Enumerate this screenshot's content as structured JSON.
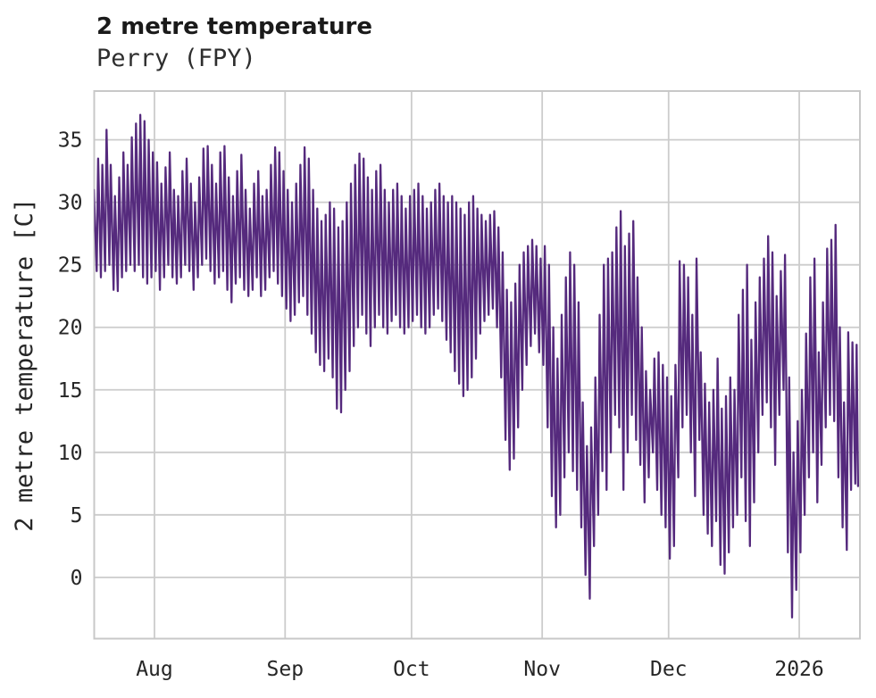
{
  "header": {
    "title": "2 metre temperature",
    "subtitle": "Perry (FPY)"
  },
  "colors": {
    "line": "#552a7d",
    "grid": "#cccccc",
    "frame": "#c8c8c8",
    "text": "#262626"
  },
  "chart_data": {
    "type": "line",
    "title": "2 metre temperature",
    "subtitle": "Perry (FPY)",
    "xlabel": "",
    "ylabel": "2 metre temperature [C]",
    "legend": "none",
    "grid": true,
    "line_color": "#552a7d",
    "start_date": "2025-07-17",
    "xlim": [
      0.7,
      182.4
    ],
    "ylim": [
      -4.9,
      38.9
    ],
    "y_ticks": [
      0,
      5,
      10,
      15,
      20,
      25,
      30,
      35
    ],
    "x_ticks": [
      {
        "label": "Aug",
        "t": 15
      },
      {
        "label": "Sep",
        "t": 46
      },
      {
        "label": "Oct",
        "t": 76
      },
      {
        "label": "Nov",
        "t": 107
      },
      {
        "label": "Dec",
        "t": 137
      },
      {
        "label": "2026",
        "t": 168
      }
    ],
    "min_sample_hour": 7,
    "max_sample_hour": 15,
    "end_value": 7.3,
    "daily_min": [
      24.0,
      24.5,
      24.0,
      24.5,
      25.0,
      23.0,
      22.9,
      24.0,
      24.5,
      25.0,
      24.5,
      25.0,
      24.0,
      23.5,
      24.0,
      24.5,
      23.0,
      24.0,
      25.0,
      24.0,
      23.5,
      24.0,
      25.0,
      24.5,
      23.0,
      24.0,
      25.0,
      25.5,
      24.5,
      23.5,
      24.0,
      24.5,
      23.0,
      22.0,
      23.5,
      24.0,
      23.0,
      22.5,
      23.0,
      24.0,
      22.5,
      23.0,
      24.0,
      24.5,
      23.5,
      22.5,
      21.5,
      20.5,
      21.0,
      22.0,
      22.5,
      21.0,
      19.5,
      18.0,
      17.0,
      16.5,
      17.5,
      16.0,
      13.5,
      13.2,
      15.0,
      16.5,
      18.5,
      20.0,
      21.0,
      19.5,
      18.5,
      20.0,
      21.0,
      20.0,
      19.5,
      20.5,
      21.0,
      20.0,
      19.5,
      20.0,
      20.5,
      21.0,
      20.0,
      19.5,
      20.0,
      21.0,
      21.5,
      20.5,
      19.0,
      18.0,
      16.5,
      15.5,
      14.5,
      15.0,
      16.0,
      17.5,
      19.5,
      20.5,
      21.0,
      21.5,
      20.0,
      16.0,
      11.0,
      8.6,
      9.5,
      12.0,
      15.0,
      17.0,
      18.5,
      19.5,
      18.0,
      17.0,
      12.0,
      6.5,
      4.0,
      5.0,
      8.0,
      10.0,
      8.5,
      7.0,
      4.0,
      0.2,
      -1.7,
      2.5,
      5.0,
      8.5,
      7.0,
      10.0,
      13.0,
      12.0,
      7.0,
      10.0,
      13.0,
      11.0,
      9.0,
      6.0,
      8.0,
      10.0,
      7.0,
      5.0,
      4.0,
      1.5,
      2.5,
      8.0,
      12.0,
      13.0,
      10.0,
      6.5,
      11.0,
      5.0,
      3.5,
      2.5,
      4.5,
      1.0,
      0.3,
      2.0,
      4.0,
      5.0,
      8.0,
      4.5,
      2.5,
      6.0,
      10.0,
      13.0,
      14.0,
      12.0,
      9.0,
      13.0,
      15.0,
      2.0,
      -3.2,
      -1.0,
      2.0,
      5.0,
      8.0,
      10.0,
      6.0,
      9.0,
      12.0,
      13.0,
      12.5,
      8.0,
      4.0,
      2.2,
      7.0,
      7.5
    ],
    "daily_max": [
      31.0,
      33.5,
      33.0,
      35.8,
      33.0,
      30.5,
      32.0,
      34.0,
      33.0,
      35.2,
      36.3,
      37.0,
      36.5,
      35.0,
      34.0,
      33.2,
      31.5,
      32.8,
      34.0,
      31.0,
      30.5,
      32.5,
      33.5,
      31.5,
      30.0,
      32.0,
      34.3,
      34.5,
      33.0,
      31.5,
      34.0,
      34.5,
      32.0,
      30.5,
      32.5,
      33.8,
      31.0,
      29.5,
      31.5,
      32.5,
      30.5,
      31.0,
      33.0,
      34.4,
      34.0,
      32.5,
      31.0,
      30.0,
      31.5,
      33.0,
      34.4,
      33.5,
      31.0,
      29.5,
      28.5,
      29.0,
      30.0,
      29.5,
      28.0,
      28.5,
      30.0,
      31.5,
      33.0,
      33.9,
      33.5,
      32.0,
      31.0,
      32.5,
      33.0,
      31.0,
      30.0,
      31.0,
      31.5,
      30.5,
      29.5,
      30.5,
      31.0,
      31.5,
      30.5,
      29.5,
      30.0,
      31.0,
      31.5,
      30.5,
      30.0,
      30.5,
      30.0,
      29.5,
      29.0,
      30.0,
      30.5,
      29.5,
      29.0,
      28.5,
      29.0,
      29.3,
      28.0,
      26.0,
      23.0,
      22.0,
      23.5,
      25.0,
      26.0,
      26.5,
      27.0,
      26.5,
      25.5,
      26.5,
      25.0,
      20.0,
      17.5,
      21.0,
      24.0,
      26.0,
      25.0,
      22.0,
      14.0,
      10.5,
      12.0,
      16.0,
      21.0,
      25.0,
      25.5,
      26.0,
      28.0,
      29.3,
      26.5,
      27.5,
      28.5,
      24.0,
      20.0,
      16.5,
      15.0,
      17.5,
      18.0,
      17.0,
      16.0,
      14.5,
      17.0,
      25.3,
      25.0,
      24.0,
      21.0,
      25.5,
      18.0,
      15.5,
      14.0,
      15.0,
      17.5,
      13.5,
      14.5,
      16.0,
      15.0,
      21.0,
      23.0,
      25.0,
      19.0,
      22.0,
      24.0,
      25.5,
      27.3,
      26.0,
      22.5,
      24.5,
      25.8,
      16.0,
      10.0,
      12.5,
      15.0,
      19.5,
      24.0,
      25.5,
      18.0,
      22.0,
      26.3,
      27.0,
      28.2,
      20.0,
      14.0,
      19.6,
      18.8,
      18.6
    ]
  }
}
